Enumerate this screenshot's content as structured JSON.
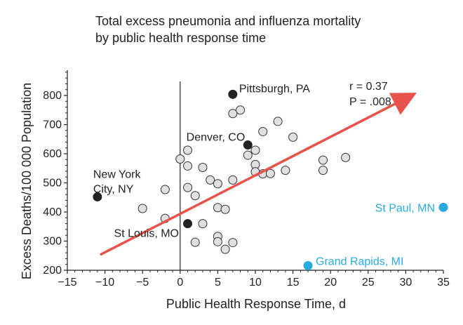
{
  "chart_data": {
    "type": "scatter",
    "title": [
      "Total excess pneumonia and influenza mortality",
      "by public health response time"
    ],
    "xlabel": "Public Health Response Time, d",
    "ylabel": "Excess Deaths/100 000 Population",
    "xlim": [
      -15,
      35
    ],
    "ylim": [
      200,
      850
    ],
    "xticks": [
      "−15",
      "−10",
      "−5",
      "0",
      "5",
      "10",
      "15",
      "20",
      "25",
      "30",
      "35"
    ],
    "yticks": [
      "200",
      "300",
      "400",
      "500",
      "600",
      "700",
      "800"
    ],
    "stats": {
      "r_label": "r = 0.37",
      "p_label": "P = .008"
    },
    "colors": {
      "open_fill": "#e0e0e0",
      "open_stroke": "#333333",
      "highlight": "#222222",
      "outlier": "#29abe2",
      "trend_arrow": "#e8524a",
      "axis": "#222222"
    },
    "points": [
      {
        "x": 1,
        "y": 612
      },
      {
        "x": 0,
        "y": 582
      },
      {
        "x": 1,
        "y": 558
      },
      {
        "x": 3,
        "y": 553
      },
      {
        "x": 4,
        "y": 510
      },
      {
        "x": 5,
        "y": 497
      },
      {
        "x": 7,
        "y": 510
      },
      {
        "x": 1,
        "y": 484
      },
      {
        "x": -2,
        "y": 477
      },
      {
        "x": 2,
        "y": 456
      },
      {
        "x": -5,
        "y": 412
      },
      {
        "x": 5,
        "y": 415
      },
      {
        "x": 6,
        "y": 409
      },
      {
        "x": -2,
        "y": 378
      },
      {
        "x": 3,
        "y": 360
      },
      {
        "x": 5,
        "y": 316
      },
      {
        "x": 2,
        "y": 296
      },
      {
        "x": 5,
        "y": 298
      },
      {
        "x": 7,
        "y": 295
      },
      {
        "x": 6,
        "y": 272
      },
      {
        "x": 7,
        "y": 738
      },
      {
        "x": 8,
        "y": 750
      },
      {
        "x": 9,
        "y": 595
      },
      {
        "x": 10,
        "y": 612
      },
      {
        "x": 10,
        "y": 563
      },
      {
        "x": 10,
        "y": 538
      },
      {
        "x": 11,
        "y": 676
      },
      {
        "x": 11,
        "y": 531
      },
      {
        "x": 12,
        "y": 532
      },
      {
        "x": 13,
        "y": 711
      },
      {
        "x": 14,
        "y": 543
      },
      {
        "x": 15,
        "y": 657
      },
      {
        "x": 19,
        "y": 578
      },
      {
        "x": 19,
        "y": 543
      },
      {
        "x": 22,
        "y": 587
      }
    ],
    "highlighted": [
      {
        "label": "Pittsburgh, PA",
        "x": 7,
        "y": 804
      },
      {
        "label": "Denver, CO",
        "x": 9,
        "y": 630
      },
      {
        "label": "New York City, NY",
        "label_lines": [
          "New York",
          "City, NY"
        ],
        "x": -11,
        "y": 452
      },
      {
        "label": "St Louis, MO",
        "x": 1,
        "y": 360
      }
    ],
    "outliers": [
      {
        "label": "St Paul, MN",
        "x": 35,
        "y": 416
      },
      {
        "label": "Grand Rapids, MI",
        "x": 17,
        "y": 216
      }
    ],
    "trend": {
      "from": [
        -10.5,
        255
      ],
      "to": [
        30,
        790
      ]
    }
  }
}
